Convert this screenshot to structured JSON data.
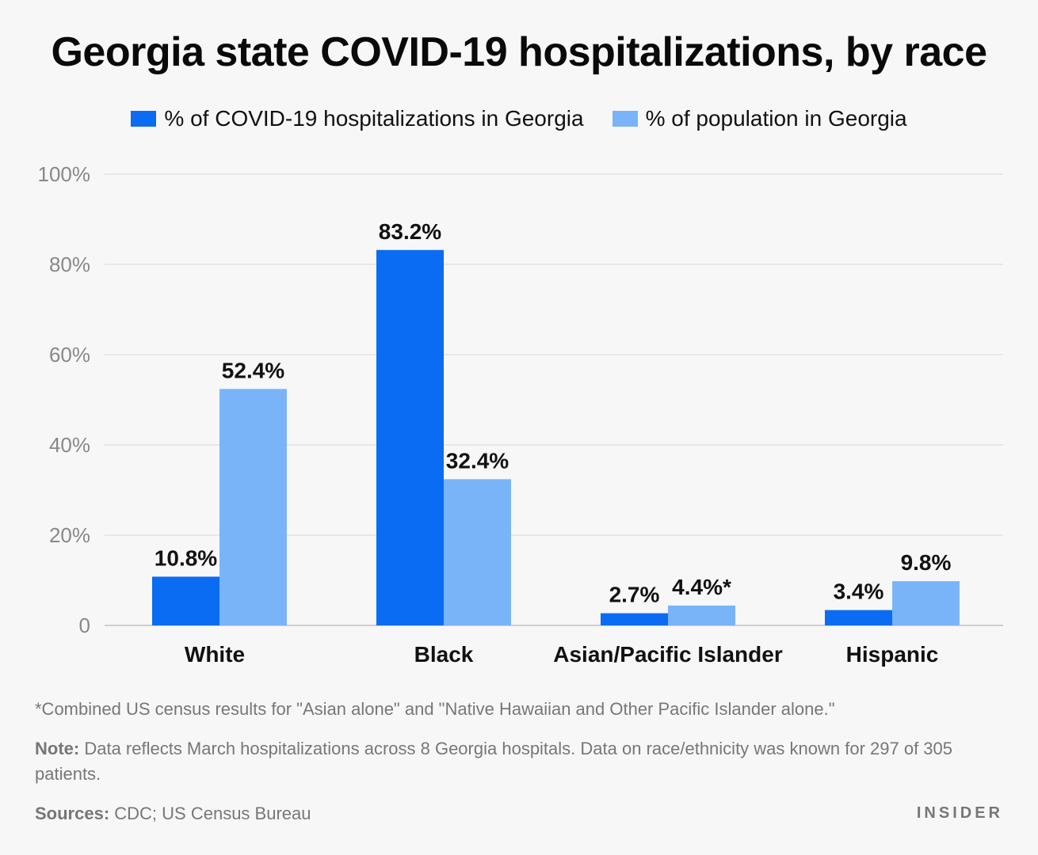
{
  "chart_data": {
    "type": "bar",
    "title": "Georgia state COVID-19 hospitalizations, by race",
    "categories": [
      "White",
      "Black",
      "Asian/Pacific Islander",
      "Hispanic"
    ],
    "series": [
      {
        "name": "% of COVID-19 hospitalizations in Georgia",
        "values": [
          10.8,
          83.2,
          2.7,
          3.4
        ],
        "labels": [
          "10.8%",
          "83.2%",
          "2.7%",
          "3.4%"
        ],
        "color": "#0a6cf2"
      },
      {
        "name": "% of population in Georgia",
        "values": [
          52.4,
          32.4,
          4.4,
          9.8
        ],
        "labels": [
          "52.4%",
          "32.4%",
          "4.4%*",
          "9.8%"
        ],
        "color": "#79b4f8"
      }
    ],
    "yticks": [
      "0",
      "20%",
      "40%",
      "60%",
      "80%",
      "100%"
    ],
    "ylim": [
      0,
      100
    ],
    "grid": true,
    "legend_position": "top"
  },
  "footnotes": {
    "asterisk": "*Combined US census results for \"Asian alone\" and \"Native Hawaiian and Other Pacific Islander alone.\"",
    "note_label": "Note:",
    "note_text": " Data reflects March hospitalizations across 8 Georgia hospitals. Data on race/ethnicity was known for 297 of 305 patients.",
    "sources_label": "Sources:",
    "sources_text": " CDC; US Census Bureau"
  },
  "brand": "INSIDER",
  "colors": {
    "axis_text": "#888888",
    "grid": "#e2e2e2"
  }
}
